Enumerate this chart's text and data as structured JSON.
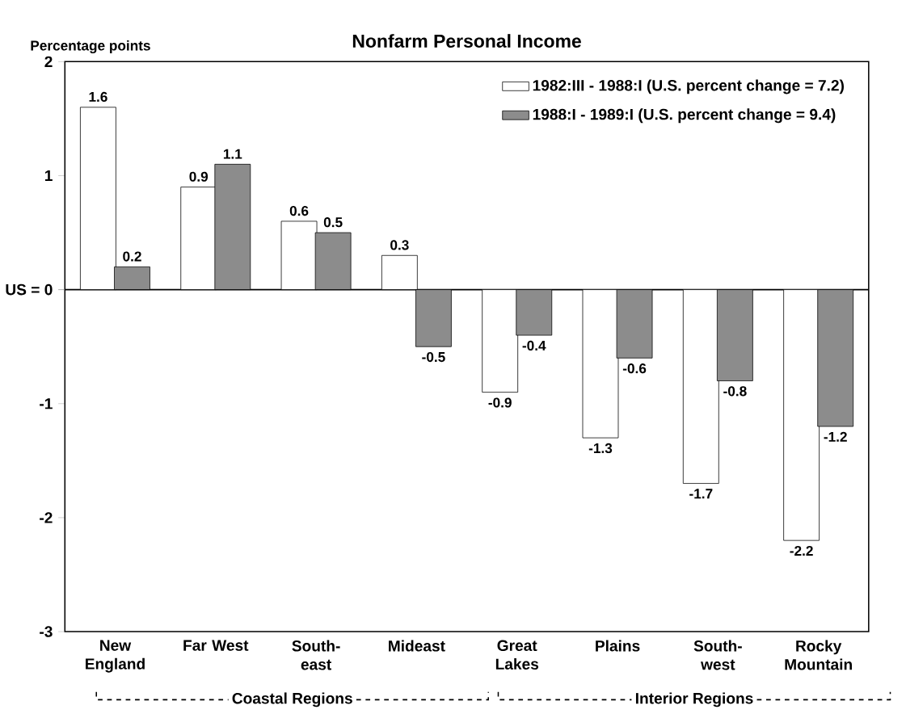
{
  "chart_data": {
    "type": "bar",
    "title": "Nonfarm Personal Income",
    "ylabel": "Percentage points",
    "categories": [
      "New England",
      "Far West",
      "South- east",
      "Mideast",
      "Great Lakes",
      "Plains",
      "South- west",
      "Rocky Mountain"
    ],
    "series": [
      {
        "name": "1982:III - 1988:I (U.S. percent change = 7.2)",
        "color": "#ffffff",
        "values": [
          1.6,
          0.9,
          0.6,
          0.3,
          -0.9,
          -1.3,
          -1.7,
          -2.2
        ]
      },
      {
        "name": "1988:I - 1989:I (U.S. percent change = 9.4)",
        "color": "#8c8c8c",
        "values": [
          0.2,
          1.1,
          0.5,
          -0.5,
          -0.4,
          -0.6,
          -0.8,
          -1.2
        ]
      }
    ],
    "ylim": [
      -3,
      2
    ],
    "yticks": [
      -3,
      -2,
      -1,
      {
        "value": 0,
        "label": "US = 0"
      },
      1,
      2
    ],
    "data_labels": true,
    "legend": "top right",
    "annotations": [
      "Coastal Regions",
      "Interior Regions"
    ]
  }
}
